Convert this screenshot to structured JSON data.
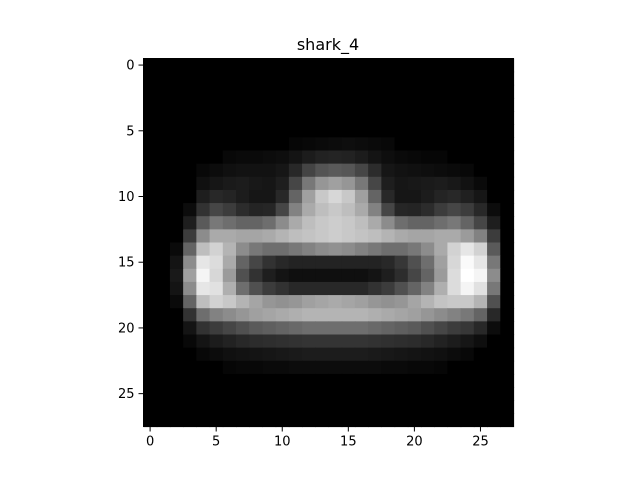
{
  "chart_data": {
    "type": "heatmap",
    "title": "shark_4",
    "xlabel": "",
    "ylabel": "",
    "colormap": "gray",
    "vmin": 0,
    "vmax": 255,
    "xlim": [
      -0.5,
      27.5
    ],
    "ylim": [
      27.5,
      -0.5
    ],
    "xticks": [
      0,
      5,
      10,
      15,
      20,
      25
    ],
    "yticks": [
      0,
      5,
      10,
      15,
      20,
      25
    ],
    "xtick_labels": [
      "0",
      "5",
      "10",
      "15",
      "20",
      "25"
    ],
    "ytick_labels": [
      "0",
      "5",
      "10",
      "15",
      "20",
      "25"
    ],
    "grid": false,
    "rows": 28,
    "cols": 28,
    "matrix": [
      [
        0,
        0,
        0,
        0,
        0,
        0,
        0,
        0,
        0,
        0,
        0,
        0,
        0,
        0,
        0,
        0,
        0,
        0,
        0,
        0,
        0,
        0,
        0,
        0,
        0,
        0,
        0,
        0
      ],
      [
        0,
        0,
        0,
        0,
        0,
        0,
        0,
        0,
        0,
        0,
        0,
        0,
        0,
        0,
        0,
        0,
        0,
        0,
        0,
        0,
        0,
        0,
        0,
        0,
        0,
        0,
        0,
        0
      ],
      [
        0,
        0,
        0,
        0,
        0,
        0,
        0,
        0,
        0,
        0,
        0,
        0,
        0,
        0,
        0,
        0,
        0,
        0,
        0,
        0,
        0,
        0,
        0,
        0,
        0,
        0,
        0,
        0
      ],
      [
        0,
        0,
        0,
        0,
        0,
        0,
        0,
        0,
        0,
        0,
        0,
        0,
        0,
        0,
        0,
        0,
        0,
        0,
        0,
        0,
        0,
        0,
        0,
        0,
        0,
        0,
        0,
        0
      ],
      [
        0,
        0,
        0,
        0,
        0,
        0,
        0,
        0,
        0,
        0,
        0,
        0,
        0,
        0,
        0,
        0,
        0,
        0,
        0,
        0,
        0,
        0,
        0,
        0,
        0,
        0,
        0,
        0
      ],
      [
        0,
        0,
        0,
        0,
        0,
        0,
        0,
        0,
        0,
        0,
        0,
        0,
        0,
        0,
        0,
        0,
        0,
        0,
        0,
        0,
        0,
        0,
        0,
        0,
        0,
        0,
        0,
        0
      ],
      [
        0,
        0,
        0,
        0,
        0,
        0,
        0,
        0,
        0,
        0,
        0,
        6,
        8,
        10,
        12,
        14,
        12,
        10,
        8,
        0,
        0,
        0,
        0,
        0,
        0,
        0,
        0,
        0
      ],
      [
        0,
        0,
        0,
        0,
        0,
        0,
        8,
        10,
        10,
        12,
        14,
        20,
        28,
        34,
        36,
        34,
        28,
        20,
        14,
        10,
        8,
        6,
        6,
        0,
        0,
        0,
        0,
        0
      ],
      [
        0,
        0,
        0,
        0,
        8,
        12,
        16,
        18,
        18,
        18,
        22,
        40,
        68,
        84,
        90,
        86,
        70,
        44,
        22,
        18,
        16,
        14,
        12,
        10,
        8,
        0,
        0,
        0
      ],
      [
        0,
        0,
        0,
        0,
        16,
        22,
        26,
        28,
        24,
        22,
        30,
        70,
        120,
        150,
        160,
        150,
        120,
        70,
        30,
        22,
        24,
        26,
        28,
        24,
        18,
        10,
        0,
        0
      ],
      [
        0,
        0,
        0,
        0,
        30,
        40,
        36,
        28,
        22,
        22,
        40,
        100,
        160,
        200,
        215,
        200,
        160,
        100,
        40,
        22,
        22,
        28,
        36,
        40,
        32,
        22,
        0,
        0
      ],
      [
        0,
        0,
        0,
        12,
        50,
        70,
        60,
        44,
        36,
        38,
        70,
        130,
        170,
        190,
        200,
        190,
        170,
        130,
        70,
        38,
        36,
        44,
        60,
        70,
        60,
        40,
        12,
        0
      ],
      [
        0,
        0,
        0,
        30,
        90,
        120,
        110,
        100,
        100,
        110,
        140,
        170,
        190,
        200,
        205,
        200,
        190,
        170,
        140,
        110,
        100,
        100,
        110,
        120,
        100,
        70,
        30,
        0
      ],
      [
        0,
        0,
        0,
        60,
        140,
        170,
        170,
        165,
        165,
        170,
        180,
        190,
        195,
        200,
        205,
        200,
        195,
        190,
        180,
        170,
        165,
        165,
        170,
        170,
        155,
        130,
        60,
        0
      ],
      [
        0,
        0,
        10,
        100,
        190,
        210,
        180,
        140,
        120,
        110,
        110,
        120,
        130,
        140,
        145,
        140,
        130,
        120,
        110,
        110,
        120,
        140,
        170,
        210,
        230,
        210,
        90,
        0
      ],
      [
        0,
        0,
        20,
        140,
        230,
        220,
        170,
        100,
        70,
        50,
        40,
        35,
        35,
        35,
        35,
        35,
        35,
        35,
        40,
        55,
        80,
        110,
        160,
        215,
        250,
        230,
        120,
        0
      ],
      [
        0,
        0,
        25,
        160,
        245,
        215,
        155,
        80,
        50,
        30,
        20,
        15,
        15,
        15,
        15,
        15,
        15,
        20,
        30,
        45,
        70,
        100,
        155,
        220,
        255,
        245,
        140,
        0
      ],
      [
        0,
        0,
        20,
        140,
        230,
        225,
        175,
        110,
        80,
        60,
        50,
        40,
        40,
        40,
        40,
        40,
        40,
        50,
        60,
        80,
        100,
        130,
        175,
        220,
        245,
        225,
        120,
        0
      ],
      [
        0,
        0,
        10,
        100,
        190,
        210,
        200,
        180,
        165,
        150,
        145,
        150,
        160,
        165,
        170,
        165,
        160,
        150,
        145,
        150,
        165,
        180,
        195,
        200,
        200,
        180,
        80,
        0
      ],
      [
        0,
        0,
        0,
        50,
        110,
        130,
        140,
        150,
        160,
        165,
        170,
        175,
        180,
        180,
        180,
        180,
        180,
        175,
        170,
        165,
        160,
        150,
        140,
        130,
        120,
        100,
        40,
        0
      ],
      [
        0,
        0,
        0,
        20,
        50,
        60,
        70,
        80,
        90,
        95,
        100,
        105,
        110,
        110,
        110,
        110,
        110,
        105,
        100,
        95,
        90,
        80,
        70,
        60,
        55,
        40,
        12,
        0
      ],
      [
        0,
        0,
        0,
        8,
        20,
        28,
        34,
        40,
        44,
        46,
        48,
        50,
        52,
        52,
        52,
        52,
        52,
        50,
        48,
        46,
        44,
        40,
        34,
        28,
        22,
        14,
        0,
        0
      ],
      [
        0,
        0,
        0,
        0,
        8,
        12,
        16,
        18,
        20,
        22,
        24,
        26,
        28,
        28,
        28,
        28,
        28,
        26,
        24,
        22,
        20,
        18,
        16,
        12,
        8,
        0,
        0,
        0
      ],
      [
        0,
        0,
        0,
        0,
        0,
        0,
        6,
        8,
        8,
        10,
        10,
        12,
        12,
        12,
        12,
        12,
        12,
        12,
        10,
        10,
        8,
        8,
        6,
        0,
        0,
        0,
        0,
        0
      ],
      [
        0,
        0,
        0,
        0,
        0,
        0,
        0,
        0,
        0,
        0,
        0,
        0,
        0,
        0,
        0,
        0,
        0,
        0,
        0,
        0,
        0,
        0,
        0,
        0,
        0,
        0,
        0,
        0
      ],
      [
        0,
        0,
        0,
        0,
        0,
        0,
        0,
        0,
        0,
        0,
        0,
        0,
        0,
        0,
        0,
        0,
        0,
        0,
        0,
        0,
        0,
        0,
        0,
        0,
        0,
        0,
        0,
        0
      ],
      [
        0,
        0,
        0,
        0,
        0,
        0,
        0,
        0,
        0,
        0,
        0,
        0,
        0,
        0,
        0,
        0,
        0,
        0,
        0,
        0,
        0,
        0,
        0,
        0,
        0,
        0,
        0,
        0
      ],
      [
        0,
        0,
        0,
        0,
        0,
        0,
        0,
        0,
        0,
        0,
        0,
        0,
        0,
        0,
        0,
        0,
        0,
        0,
        0,
        0,
        0,
        0,
        0,
        0,
        0,
        0,
        0,
        0
      ]
    ]
  }
}
